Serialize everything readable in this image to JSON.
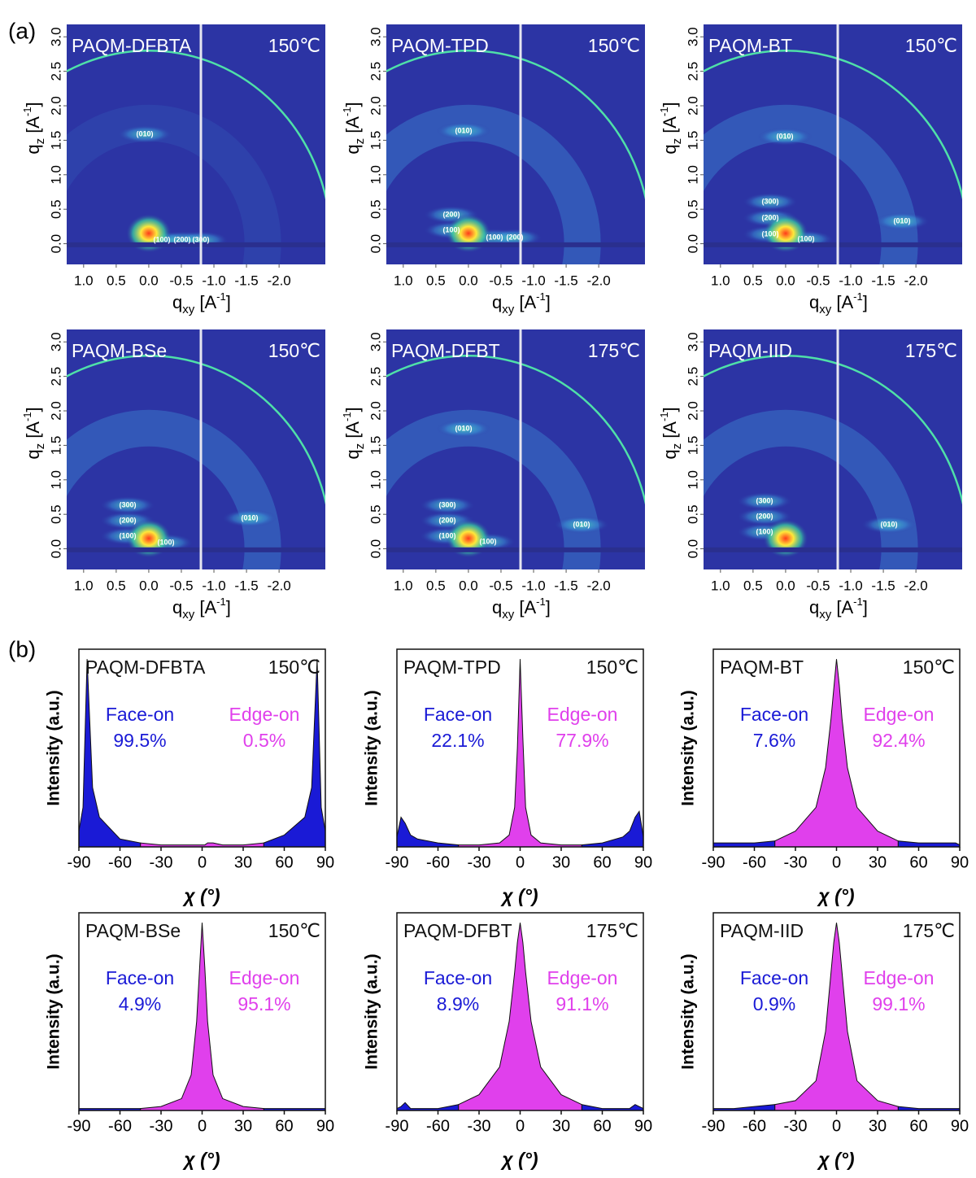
{
  "panel_labels": [
    "(a)",
    "(b)"
  ],
  "chart_data": [
    {
      "type": "image",
      "title": "PAQM-DFBTA",
      "temperature": "150℃",
      "annotations": [
        "(010)",
        "(100)",
        "(200)",
        "(300)"
      ],
      "xlabel": {
        "base": "q",
        "sub": "xy",
        "unit": " [A",
        "sup": "-1",
        "end": "]"
      },
      "ylabel": {
        "base": "q",
        "sub": "z",
        "unit": " [A",
        "sup": "-1",
        "end": "]"
      },
      "xlim": [
        1.26,
        -2.71
      ],
      "ylim": [
        -0.3,
        3.18
      ],
      "xticks": [
        {
          "value": 1,
          "label": "1.0"
        },
        0.5,
        {
          "value": 0,
          "label": "0.0"
        },
        -0.5,
        {
          "value": -1,
          "label": "-1.0"
        },
        -1.5,
        {
          "value": -2,
          "label": "-2.0"
        }
      ],
      "yticks": [
        {
          "value": 0,
          "label": "0.0"
        },
        0.5,
        {
          "value": 1,
          "label": "1.0"
        },
        1.5,
        {
          "value": 2,
          "label": "2.0"
        },
        2.5,
        {
          "value": 3,
          "label": "3.0"
        }
      ]
    },
    {
      "type": "image",
      "title": "PAQM-TPD",
      "temperature": "150℃",
      "annotations": [
        "(010)",
        "(200)",
        "(100)",
        "(100)",
        "(200)"
      ],
      "xlabel": {
        "base": "q",
        "sub": "xy",
        "unit": " [A",
        "sup": "-1",
        "end": "]"
      },
      "ylabel": {
        "base": "q",
        "sub": "z",
        "unit": " [A",
        "sup": "-1",
        "end": "]"
      },
      "xlim": [
        1.26,
        -2.71
      ],
      "ylim": [
        -0.3,
        3.18
      ],
      "xticks": [
        {
          "value": 1,
          "label": "1.0"
        },
        0.5,
        {
          "value": 0,
          "label": "0.0"
        },
        -0.5,
        {
          "value": -1,
          "label": "-1.0"
        },
        -1.5,
        {
          "value": -2,
          "label": "-2.0"
        }
      ],
      "yticks": [
        {
          "value": 0,
          "label": "0.0"
        },
        0.5,
        {
          "value": 1,
          "label": "1.0"
        },
        1.5,
        {
          "value": 2,
          "label": "2.0"
        },
        2.5,
        {
          "value": 3,
          "label": "3.0"
        }
      ]
    },
    {
      "type": "image",
      "title": "PAQM-BT",
      "temperature": "150℃",
      "annotations": [
        "(010)",
        "(300)",
        "(200)",
        "(100)",
        "(100)",
        "(010)"
      ],
      "xlabel": {
        "base": "q",
        "sub": "xy",
        "unit": " [A",
        "sup": "-1",
        "end": "]"
      },
      "ylabel": {
        "base": "q",
        "sub": "z",
        "unit": " [A",
        "sup": "-1",
        "end": "]"
      },
      "xlim": [
        1.26,
        -2.71
      ],
      "ylim": [
        -0.3,
        3.18
      ],
      "xticks": [
        {
          "value": 1,
          "label": "1.0"
        },
        0.5,
        {
          "value": 0,
          "label": "0.0"
        },
        -0.5,
        {
          "value": -1,
          "label": "-1.0"
        },
        -1.5,
        {
          "value": -2,
          "label": "-2.0"
        }
      ],
      "yticks": [
        {
          "value": 0,
          "label": "0.0"
        },
        0.5,
        {
          "value": 1,
          "label": "1.0"
        },
        1.5,
        {
          "value": 2,
          "label": "2.0"
        },
        2.5,
        {
          "value": 3,
          "label": "3.0"
        }
      ]
    },
    {
      "type": "image",
      "title": "PAQM-BSe",
      "temperature": "150℃",
      "annotations": [
        "(300)",
        "(200)",
        "(100)",
        "(100)",
        "(010)"
      ],
      "xlabel": {
        "base": "q",
        "sub": "xy",
        "unit": " [A",
        "sup": "-1",
        "end": "]"
      },
      "ylabel": {
        "base": "q",
        "sub": "z",
        "unit": " [A",
        "sup": "-1",
        "end": "]"
      },
      "xlim": [
        1.26,
        -2.71
      ],
      "ylim": [
        -0.3,
        3.18
      ],
      "xticks": [
        {
          "value": 1,
          "label": "1.0"
        },
        0.5,
        {
          "value": 0,
          "label": "0.0"
        },
        -0.5,
        {
          "value": -1,
          "label": "-1.0"
        },
        -1.5,
        {
          "value": -2,
          "label": "-2.0"
        }
      ],
      "yticks": [
        {
          "value": 0,
          "label": "0.0"
        },
        0.5,
        {
          "value": 1,
          "label": "1.0"
        },
        1.5,
        {
          "value": 2,
          "label": "2.0"
        },
        2.5,
        {
          "value": 3,
          "label": "3.0"
        }
      ]
    },
    {
      "type": "image",
      "title": "PAQM-DFBT",
      "temperature": "175℃",
      "annotations": [
        "(010)",
        "(300)",
        "(200)",
        "(100)",
        "(100)",
        "(010)"
      ],
      "xlabel": {
        "base": "q",
        "sub": "xy",
        "unit": " [A",
        "sup": "-1",
        "end": "]"
      },
      "ylabel": {
        "base": "q",
        "sub": "z",
        "unit": " [A",
        "sup": "-1",
        "end": "]"
      },
      "xlim": [
        1.26,
        -2.71
      ],
      "ylim": [
        -0.3,
        3.18
      ],
      "xticks": [
        {
          "value": 1,
          "label": "1.0"
        },
        0.5,
        {
          "value": 0,
          "label": "0.0"
        },
        -0.5,
        {
          "value": -1,
          "label": "-1.0"
        },
        -1.5,
        {
          "value": -2,
          "label": "-2.0"
        }
      ],
      "yticks": [
        {
          "value": 0,
          "label": "0.0"
        },
        0.5,
        {
          "value": 1,
          "label": "1.0"
        },
        1.5,
        {
          "value": 2,
          "label": "2.0"
        },
        2.5,
        {
          "value": 3,
          "label": "3.0"
        }
      ]
    },
    {
      "type": "image",
      "title": "PAQM-IID",
      "temperature": "175℃",
      "annotations": [
        "(300)",
        "(200)",
        "(100)",
        "(010)"
      ],
      "xlabel": {
        "base": "q",
        "sub": "xy",
        "unit": " [A",
        "sup": "-1",
        "end": "]"
      },
      "ylabel": {
        "base": "q",
        "sub": "z",
        "unit": " [A",
        "sup": "-1",
        "end": "]"
      },
      "xlim": [
        1.26,
        -2.71
      ],
      "ylim": [
        -0.3,
        3.18
      ],
      "xticks": [
        {
          "value": 1,
          "label": "1.0"
        },
        0.5,
        {
          "value": 0,
          "label": "0.0"
        },
        -0.5,
        {
          "value": -1,
          "label": "-1.0"
        },
        -1.5,
        {
          "value": -2,
          "label": "-2.0"
        }
      ],
      "yticks": [
        {
          "value": 0,
          "label": "0.0"
        },
        0.5,
        {
          "value": 1,
          "label": "1.0"
        },
        1.5,
        {
          "value": 2,
          "label": "2.0"
        },
        2.5,
        {
          "value": 3,
          "label": "3.0"
        }
      ]
    },
    {
      "type": "area",
      "title": "PAQM-DFBTA",
      "temperature": "150℃",
      "xlabel": "χ (°)",
      "ylabel": "Intensity (a.u.)",
      "xlim": [
        -90,
        90
      ],
      "ylim": [
        0,
        100
      ],
      "xticks": [
        -90,
        -60,
        -30,
        0,
        30,
        60,
        90
      ],
      "x": [
        -90,
        -87,
        -84,
        -80,
        -75,
        -60,
        -45,
        -30,
        -15,
        -8,
        -4,
        -2,
        0,
        2,
        4,
        8,
        15,
        30,
        45,
        60,
        75,
        80,
        84,
        87,
        90
      ],
      "series": [
        {
          "name": "Face-on",
          "share": "99.5%",
          "color": "#1a1ad6",
          "values": [
            8,
            20,
            95,
            30,
            15,
            4,
            2,
            null,
            null,
            null,
            null,
            null,
            null,
            null,
            null,
            null,
            null,
            null,
            2,
            6,
            15,
            30,
            95,
            20,
            8
          ]
        },
        {
          "name": "Edge-on",
          "share": "0.5%",
          "color": "#e040ec",
          "values": [
            null,
            null,
            null,
            null,
            null,
            null,
            2,
            1,
            1,
            1,
            1,
            1,
            1,
            1,
            2,
            2,
            1,
            1,
            2,
            null,
            null,
            null,
            null,
            null,
            null
          ]
        }
      ]
    },
    {
      "type": "area",
      "title": "PAQM-TPD",
      "temperature": "150℃",
      "xlabel": "χ (°)",
      "ylabel": "Intensity (a.u.)",
      "xlim": [
        -90,
        90
      ],
      "ylim": [
        0,
        100
      ],
      "xticks": [
        -90,
        -60,
        -30,
        0,
        30,
        60,
        90
      ],
      "x": [
        -90,
        -87,
        -84,
        -80,
        -75,
        -60,
        -45,
        -30,
        -15,
        -8,
        -4,
        -2,
        0,
        2,
        4,
        8,
        15,
        30,
        45,
        60,
        75,
        80,
        84,
        87,
        90
      ],
      "series": [
        {
          "name": "Face-on",
          "share": "22.1%",
          "color": "#1a1ad6",
          "values": [
            5,
            15,
            12,
            6,
            4,
            2,
            1,
            null,
            null,
            null,
            null,
            null,
            null,
            null,
            null,
            null,
            null,
            null,
            1,
            2,
            5,
            8,
            15,
            18,
            5
          ]
        },
        {
          "name": "Edge-on",
          "share": "77.9%",
          "color": "#e040ec",
          "values": [
            null,
            null,
            null,
            null,
            null,
            null,
            1,
            1,
            2,
            6,
            20,
            50,
            95,
            55,
            20,
            6,
            2,
            1,
            1,
            null,
            null,
            null,
            null,
            null,
            null
          ]
        }
      ]
    },
    {
      "type": "area",
      "title": "PAQM-BT",
      "temperature": "150℃",
      "xlabel": "χ (°)",
      "ylabel": "Intensity (a.u.)",
      "xlim": [
        -90,
        90
      ],
      "ylim": [
        0,
        100
      ],
      "xticks": [
        -90,
        -60,
        -30,
        0,
        30,
        60,
        90
      ],
      "x": [
        -90,
        -87,
        -84,
        -80,
        -75,
        -60,
        -45,
        -30,
        -15,
        -8,
        -4,
        -2,
        0,
        2,
        4,
        8,
        15,
        30,
        45,
        60,
        75,
        80,
        84,
        87,
        90
      ],
      "series": [
        {
          "name": "Face-on",
          "share": "7.6%",
          "color": "#1a1ad6",
          "values": [
            2,
            2,
            2,
            2,
            2,
            2,
            3,
            null,
            null,
            null,
            null,
            null,
            null,
            null,
            null,
            null,
            null,
            null,
            3,
            2,
            2,
            2,
            2,
            2,
            1
          ]
        },
        {
          "name": "Edge-on",
          "share": "92.4%",
          "color": "#e040ec",
          "values": [
            null,
            null,
            null,
            null,
            null,
            null,
            3,
            8,
            20,
            40,
            65,
            80,
            95,
            82,
            65,
            40,
            20,
            8,
            3,
            null,
            null,
            null,
            null,
            null,
            null
          ]
        }
      ]
    },
    {
      "type": "area",
      "title": "PAQM-BSe",
      "temperature": "150℃",
      "xlabel": "χ (°)",
      "ylabel": "Intensity (a.u.)",
      "xlim": [
        -90,
        90
      ],
      "ylim": [
        0,
        100
      ],
      "xticks": [
        -90,
        -60,
        -30,
        0,
        30,
        60,
        90
      ],
      "x": [
        -90,
        -87,
        -84,
        -80,
        -75,
        -60,
        -45,
        -30,
        -15,
        -8,
        -4,
        -2,
        0,
        2,
        4,
        8,
        15,
        30,
        45,
        60,
        75,
        80,
        84,
        87,
        90
      ],
      "series": [
        {
          "name": "Face-on",
          "share": "4.9%",
          "color": "#1a1ad6",
          "values": [
            1,
            1,
            1,
            1,
            1,
            1,
            1,
            null,
            null,
            null,
            null,
            null,
            null,
            null,
            null,
            null,
            null,
            null,
            1,
            1,
            1,
            1,
            1,
            1,
            1
          ]
        },
        {
          "name": "Edge-on",
          "share": "95.1%",
          "color": "#e040ec",
          "values": [
            null,
            null,
            null,
            null,
            null,
            null,
            1,
            2,
            6,
            18,
            45,
            70,
            95,
            72,
            45,
            18,
            6,
            2,
            1,
            null,
            null,
            null,
            null,
            null,
            null
          ]
        }
      ]
    },
    {
      "type": "area",
      "title": "PAQM-DFBT",
      "temperature": "175℃",
      "xlabel": "χ (°)",
      "ylabel": "Intensity (a.u.)",
      "xlim": [
        -90,
        90
      ],
      "ylim": [
        0,
        100
      ],
      "xticks": [
        -90,
        -60,
        -30,
        0,
        30,
        60,
        90
      ],
      "x": [
        -90,
        -87,
        -84,
        -80,
        -75,
        -60,
        -45,
        -30,
        -15,
        -8,
        -4,
        -2,
        0,
        2,
        4,
        8,
        15,
        30,
        45,
        60,
        75,
        80,
        84,
        87,
        90
      ],
      "series": [
        {
          "name": "Face-on",
          "share": "8.9%",
          "color": "#1a1ad6",
          "values": [
            1,
            2,
            4,
            1,
            1,
            1,
            3,
            null,
            null,
            null,
            null,
            null,
            null,
            null,
            null,
            null,
            null,
            null,
            3,
            1,
            1,
            1,
            3,
            2,
            1
          ]
        },
        {
          "name": "Edge-on",
          "share": "91.1%",
          "color": "#e040ec",
          "values": [
            null,
            null,
            null,
            null,
            null,
            null,
            3,
            8,
            22,
            45,
            70,
            85,
            95,
            85,
            70,
            45,
            22,
            8,
            3,
            null,
            null,
            null,
            null,
            null,
            null
          ]
        }
      ]
    },
    {
      "type": "area",
      "title": "PAQM-IID",
      "temperature": "175℃",
      "xlabel": "χ (°)",
      "ylabel": "Intensity (a.u.)",
      "xlim": [
        -90,
        90
      ],
      "ylim": [
        0,
        100
      ],
      "xticks": [
        -90,
        -60,
        -30,
        0,
        30,
        60,
        90
      ],
      "x": [
        -90,
        -87,
        -84,
        -80,
        -75,
        -60,
        -45,
        -30,
        -15,
        -8,
        -4,
        -2,
        0,
        2,
        4,
        8,
        15,
        30,
        45,
        60,
        75,
        80,
        84,
        87,
        90
      ],
      "series": [
        {
          "name": "Face-on",
          "share": "0.9%",
          "color": "#1a1ad6",
          "values": [
            1,
            1,
            1,
            1,
            1,
            2,
            3,
            null,
            null,
            null,
            null,
            null,
            null,
            null,
            null,
            null,
            null,
            null,
            2,
            1,
            1,
            1,
            1,
            1,
            1
          ]
        },
        {
          "name": "Edge-on",
          "share": "99.1%",
          "color": "#e040ec",
          "values": [
            null,
            null,
            null,
            null,
            null,
            null,
            3,
            5,
            15,
            40,
            70,
            85,
            95,
            85,
            70,
            40,
            15,
            5,
            2,
            null,
            null,
            null,
            null,
            null,
            null
          ]
        }
      ]
    }
  ]
}
